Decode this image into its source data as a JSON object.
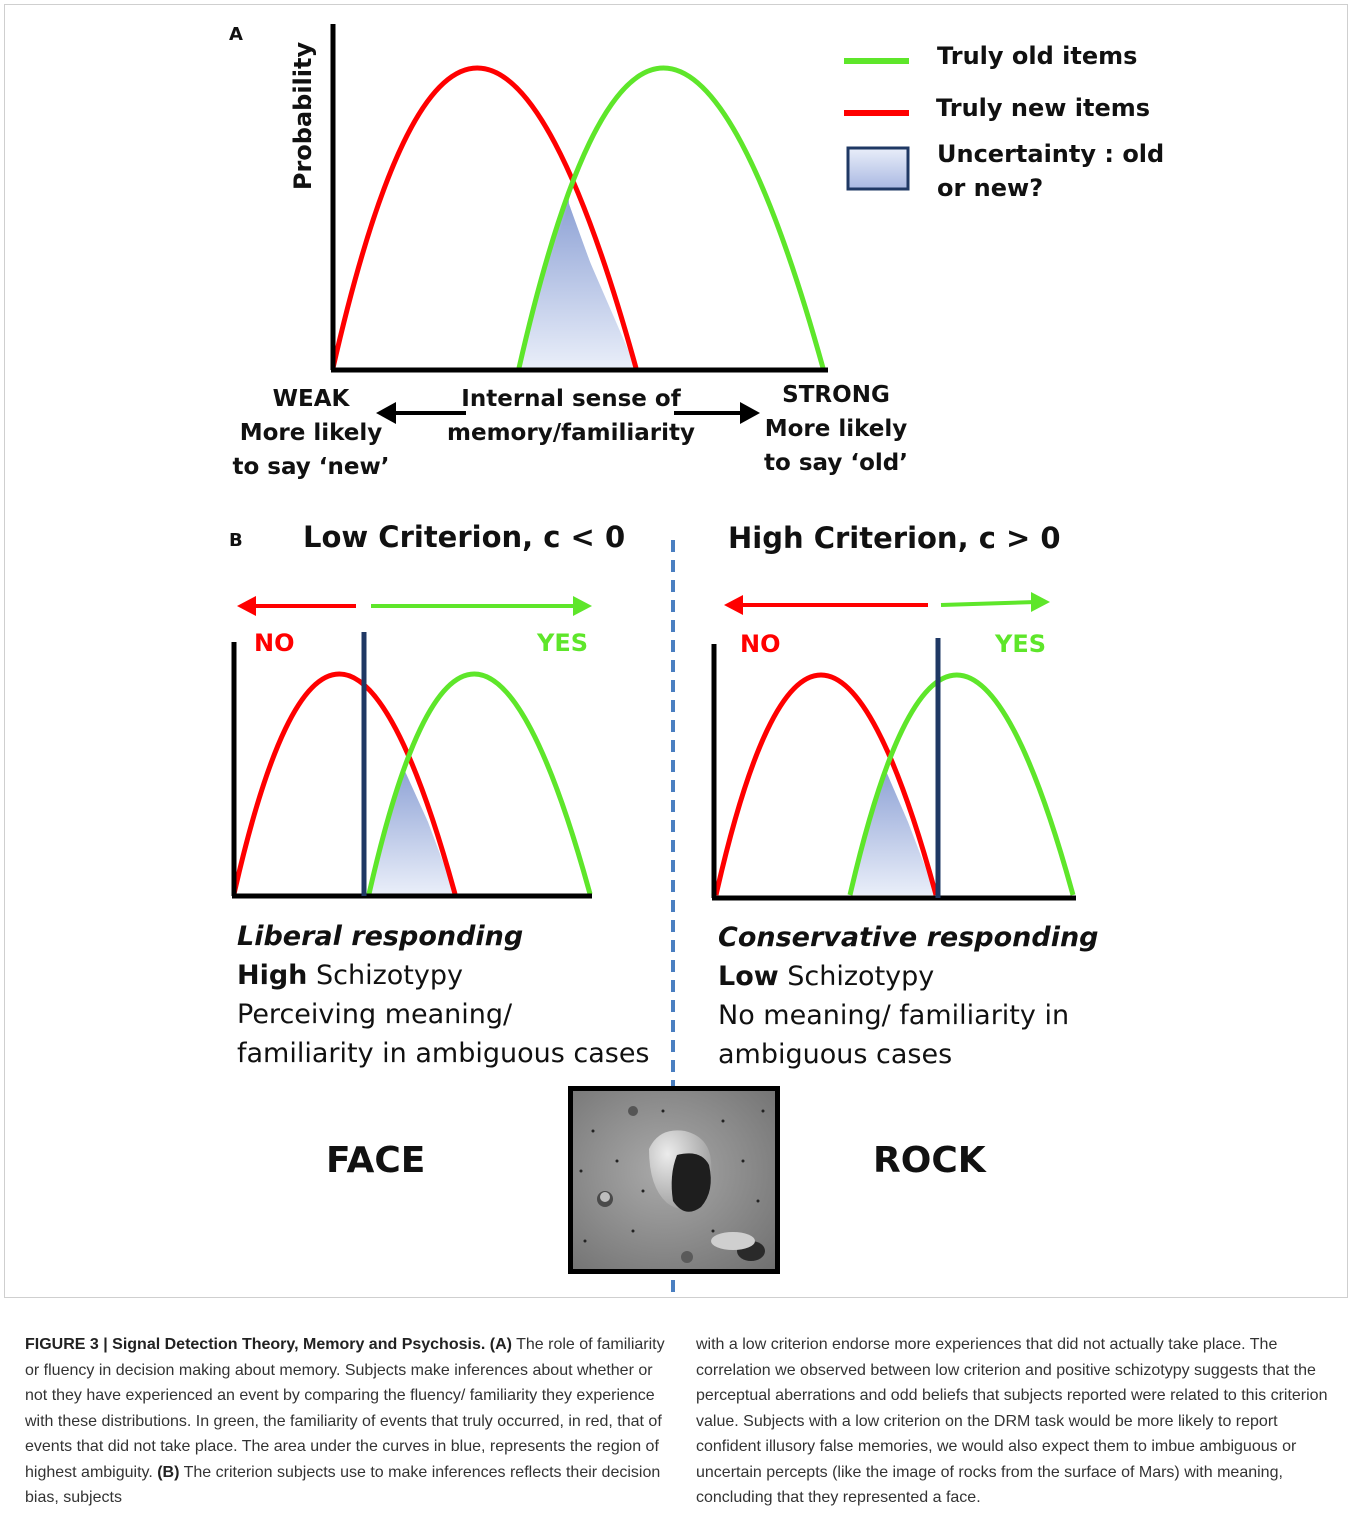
{
  "panel_a": {
    "letter": "A",
    "y_axis_label": "Probability",
    "legend": {
      "old_items": "Truly old items",
      "new_items": "Truly new items",
      "uncertainty_line1": "Uncertainty : old",
      "uncertainty_line2": "or new?"
    },
    "weak": {
      "line1": "WEAK",
      "line2": "More likely",
      "line3": "to say ‘new’"
    },
    "center": {
      "line1": "Internal sense of",
      "line2": "memory/familiarity"
    },
    "strong": {
      "line1": "STRONG",
      "line2": "More likely",
      "line3": "to say ‘old’"
    }
  },
  "panel_b": {
    "letter": "B",
    "left": {
      "heading": "Low Criterion, c < 0",
      "no": "NO",
      "yes": "YES",
      "desc_title": "Liberal responding",
      "desc_bold": "High",
      "desc_rest": " Schizotypy",
      "desc_line3": "Perceiving meaning/",
      "desc_line4": "familiarity in ambiguous cases"
    },
    "right": {
      "heading": "High Criterion, c > 0",
      "no": "NO",
      "yes": "YES",
      "desc_title": "Conservative responding",
      "desc_bold": "Low",
      "desc_rest": " Schizotypy",
      "desc_line3": "No meaning/ familiarity in",
      "desc_line4": "ambiguous cases"
    },
    "face_label": "FACE",
    "rock_label": "ROCK"
  },
  "caption": {
    "left": {
      "bold_prefix": "FIGURE 3 | Signal Detection Theory, Memory and Psychosis. (A)",
      "part1": " The role of familiarity or fluency in decision making about memory. Subjects make inferences about whether or not they have experienced an event by comparing the fluency/ familiarity they experience with these distributions. In green, the familiarity of events that truly occurred, in red, that of events that did not take place. The area under the curves in blue, represents the region of highest ambiguity. ",
      "bold_b": "(B)",
      "part2": " The criterion subjects use to make inferences reflects their decision bias, subjects"
    },
    "right": "with a low criterion endorse more experiences that did not actually take place. The correlation we observed between low criterion and positive schizotypy suggests that the perceptual aberrations and odd beliefs that subjects reported were related to this criterion value. Subjects with a low criterion on the DRM task would be more likely to report confident illusory false memories, we would also expect them to imbue ambiguous or uncertain percepts (like the image of rocks from the surface of Mars) with meaning, concluding that they represented a face."
  },
  "colors": {
    "old": "#5ee62a",
    "new": "#ff0000",
    "uncertainty_fill": "#b7c3e6",
    "criterion": "#1f3864",
    "divider": "#4a7fc1"
  }
}
